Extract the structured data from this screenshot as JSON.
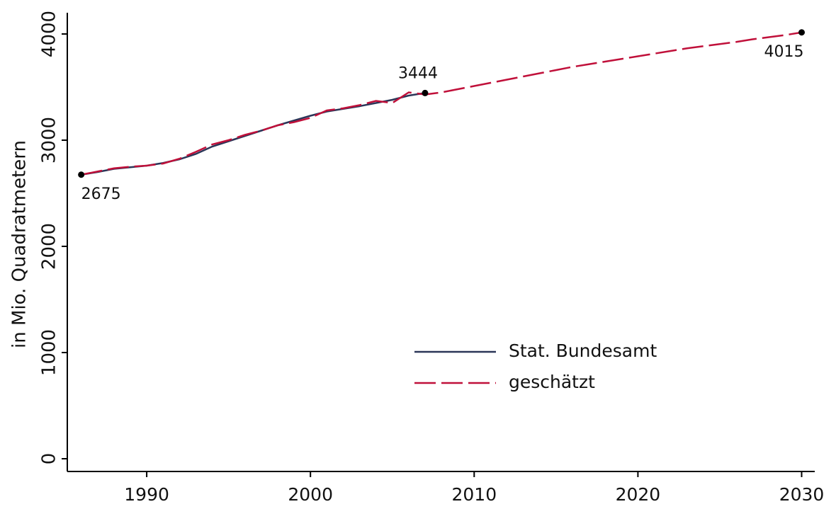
{
  "chart_data": {
    "type": "line",
    "y_label": "in Mio. Quadratmetern",
    "x": [
      1986,
      1987,
      1988,
      1989,
      1990,
      1991,
      1992,
      1993,
      1994,
      1995,
      1996,
      1997,
      1998,
      1999,
      2000,
      2001,
      2002,
      2003,
      2004,
      2005,
      2006,
      2007,
      2008,
      2009,
      2010,
      2011,
      2012,
      2013,
      2014,
      2015,
      2016,
      2017,
      2018,
      2019,
      2020,
      2021,
      2022,
      2023,
      2024,
      2025,
      2026,
      2027,
      2028,
      2029,
      2030
    ],
    "series": [
      {
        "name": "Stat. Bundesamt",
        "color": "#2b3658",
        "dash": false,
        "values": [
          2675,
          2700,
          2730,
          2745,
          2760,
          2785,
          2820,
          2870,
          2940,
          2990,
          3040,
          3090,
          3140,
          3185,
          3230,
          3270,
          3295,
          3320,
          3350,
          3380,
          3420,
          3444,
          null,
          null,
          null,
          null,
          null,
          null,
          null,
          null,
          null,
          null,
          null,
          null,
          null,
          null,
          null,
          null,
          null,
          null,
          null,
          null,
          null,
          null,
          null
        ]
      },
      {
        "name": "geschätzt",
        "color": "#c0103a",
        "dash": true,
        "values": [
          2675,
          2705,
          2735,
          2750,
          2760,
          2780,
          2825,
          2890,
          2960,
          3000,
          3050,
          3090,
          3140,
          3170,
          3210,
          3280,
          3300,
          3330,
          3370,
          3350,
          3450,
          3430,
          3450,
          3480,
          3510,
          3540,
          3570,
          3600,
          3630,
          3660,
          3690,
          3715,
          3740,
          3765,
          3790,
          3815,
          3840,
          3865,
          3885,
          3905,
          3925,
          3950,
          3970,
          3990,
          4015
        ]
      }
    ],
    "annotations": [
      {
        "text": "2675",
        "x": 1986,
        "y": 2675
      },
      {
        "text": "3444",
        "x": 2007,
        "y": 3444
      },
      {
        "text": "4015",
        "x": 2030,
        "y": 4015
      }
    ],
    "xlim": [
      1985.15,
      2030.8
    ],
    "xticks": [
      1990,
      2000,
      2010,
      2020,
      2030
    ],
    "ylim": [
      -120,
      4200
    ],
    "yticks": [
      0,
      1000,
      2000,
      3000,
      4000
    ],
    "legend": "lower right"
  }
}
